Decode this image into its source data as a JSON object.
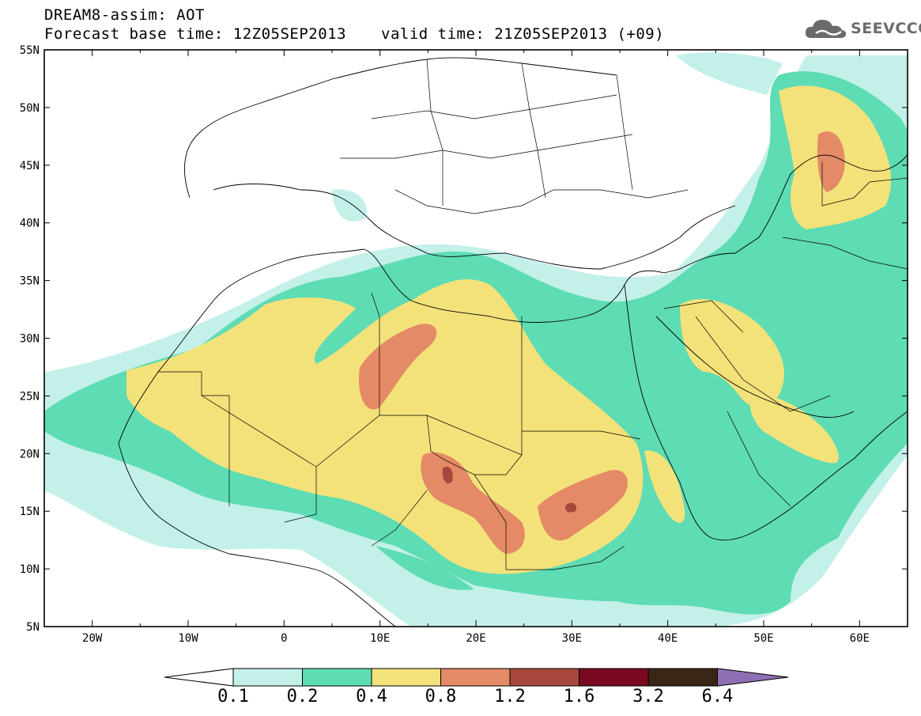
{
  "title": {
    "line1": "DREAM8-assim: AOT",
    "line2_base": "Forecast base time: 12Z05SEP2013",
    "line2_valid": "valid time: 21Z05SEP2013 (+09)"
  },
  "logo": {
    "text": "SEEVCCC",
    "icon": "cloud-icon"
  },
  "axes": {
    "lon_labels": [
      "20W",
      "10W",
      "0",
      "10E",
      "20E",
      "30E",
      "40E",
      "50E",
      "60E"
    ],
    "lat_labels": [
      "55N",
      "50N",
      "45N",
      "40N",
      "35N",
      "30N",
      "25N",
      "20N",
      "15N",
      "10N",
      "5N"
    ],
    "lon_range": [
      -25,
      65
    ],
    "lat_range": [
      5,
      55
    ]
  },
  "colorbar": {
    "labels": [
      "0.1",
      "0.2",
      "0.4",
      "0.8",
      "1.2",
      "1.6",
      "3.2",
      "6.4"
    ],
    "colors": {
      "under": "#ffffff",
      "c1": "#c4f0ea",
      "c2": "#5edcb4",
      "c3": "#f3e27a",
      "c4": "#e48a66",
      "c5": "#a8483c",
      "c6": "#7a0a22",
      "c7": "#3a2616",
      "over": "#8f6fb3"
    }
  }
}
